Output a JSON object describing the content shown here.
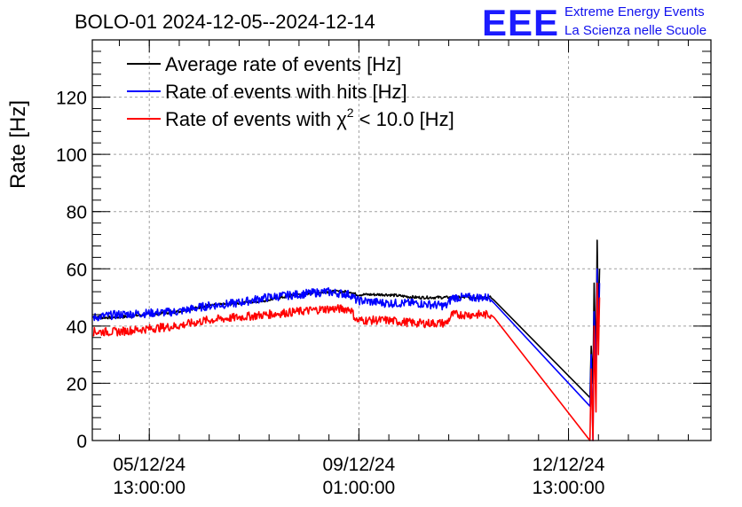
{
  "header": {
    "title": "BOLO-01 2024-12-05--2024-12-14",
    "logo": "EEE",
    "org_line1": "Extreme Energy Events",
    "org_line2": "La Scienza nelle Scuole"
  },
  "chart_data": {
    "type": "line",
    "title": "BOLO-01 2024-12-05--2024-12-14",
    "xlabel": "",
    "ylabel": "Rate [Hz]",
    "x_unit": "days since 2024-12-05 00:00",
    "xlim": [
      -0.41,
      9.92
    ],
    "ylim": [
      0,
      140
    ],
    "y_ticks": [
      0,
      20,
      40,
      60,
      80,
      100,
      120
    ],
    "x_ticks": [
      {
        "x": 0.5417,
        "label1": "05/12/24",
        "label2": "13:00:00"
      },
      {
        "x": 4.0417,
        "label1": "09/12/24",
        "label2": "01:00:00"
      },
      {
        "x": 7.5417,
        "label1": "12/12/24",
        "label2": "13:00:00"
      }
    ],
    "grid": true,
    "legend_position": "top-left",
    "series": [
      {
        "name": "Average rate of events [Hz]",
        "color": "#000000",
        "x": [
          -0.4,
          0.0,
          1.0,
          1.5,
          2.0,
          2.5,
          3.0,
          3.5,
          3.9,
          4.0,
          4.5,
          5.0,
          5.5,
          5.6,
          6.0,
          6.25,
          6.3,
          7.9,
          7.92,
          7.95,
          7.97,
          8.0,
          8.02,
          8.04,
          8.06
        ],
        "y": [
          43,
          43,
          45,
          47,
          48,
          49,
          51,
          52,
          52,
          51,
          51,
          50,
          50,
          50,
          50,
          50,
          49,
          15,
          33,
          20,
          55,
          25,
          70,
          40,
          60
        ]
      },
      {
        "name": "Rate of events with hits [Hz]",
        "color": "#0000ff",
        "x": [
          -0.4,
          0.0,
          1.0,
          1.5,
          2.0,
          2.5,
          3.0,
          3.5,
          3.9,
          4.0,
          4.5,
          5.0,
          5.5,
          5.6,
          6.0,
          6.25,
          6.3,
          7.9,
          7.92,
          7.95,
          7.97,
          8.0,
          8.02,
          8.04,
          8.06
        ],
        "y": [
          43,
          44,
          45,
          47,
          48,
          50,
          51,
          52,
          51,
          49,
          48,
          48,
          47,
          50,
          50,
          50,
          48,
          12,
          30,
          0,
          45,
          20,
          60,
          35,
          55
        ]
      },
      {
        "name": "Rate of events with χ² < 10.0 [Hz]",
        "legend_text": "Rate of events with χ",
        "legend_sup": "2",
        "legend_tail": " < 10.0 [Hz]",
        "color": "#ff0000",
        "x": [
          -0.4,
          0.0,
          1.0,
          1.5,
          2.0,
          2.5,
          3.0,
          3.5,
          3.9,
          4.0,
          4.5,
          5.0,
          5.5,
          5.6,
          6.0,
          6.25,
          6.3,
          7.9,
          7.92,
          7.95,
          7.97,
          8.0,
          8.02,
          8.04,
          8.06
        ],
        "y": [
          38,
          38,
          40,
          42,
          43,
          44,
          45,
          46,
          46,
          42,
          42,
          41,
          41,
          44,
          44,
          44,
          43,
          0,
          25,
          0,
          40,
          10,
          55,
          30,
          50
        ]
      }
    ]
  }
}
